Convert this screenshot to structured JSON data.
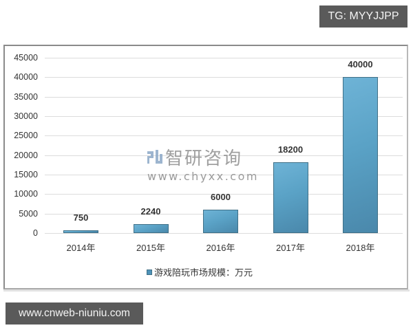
{
  "overlay": {
    "top_tag": "TG: MYYJJPP",
    "bottom_tag": "www.cnweb-niuniu.com"
  },
  "watermark": {
    "brand": "智研咨询",
    "url": "www.chyxx.com"
  },
  "colors": {
    "bar": "#5aa2c6",
    "bar_border": "#3f6f86",
    "tag_bg": "#5a5a5a",
    "grid": "#dcdcdc"
  },
  "chart_data": {
    "type": "bar",
    "title": "",
    "xlabel": "",
    "ylabel": "",
    "categories": [
      "2014年",
      "2015年",
      "2016年",
      "2017年",
      "2018年"
    ],
    "series": [
      {
        "name": "游戏陪玩市场规模：万元",
        "values": [
          750,
          2240,
          6000,
          18200,
          40000
        ]
      }
    ],
    "data_labels": [
      "750",
      "2240",
      "6000",
      "18200",
      "40000"
    ],
    "yticks": [
      "0",
      "5000",
      "10000",
      "15000",
      "20000",
      "25000",
      "30000",
      "35000",
      "40000",
      "45000"
    ],
    "ylim": [
      0,
      45000
    ],
    "grid": true,
    "legend": {
      "position": "bottom",
      "entries": [
        "游戏陪玩市场规模：万元"
      ]
    }
  }
}
